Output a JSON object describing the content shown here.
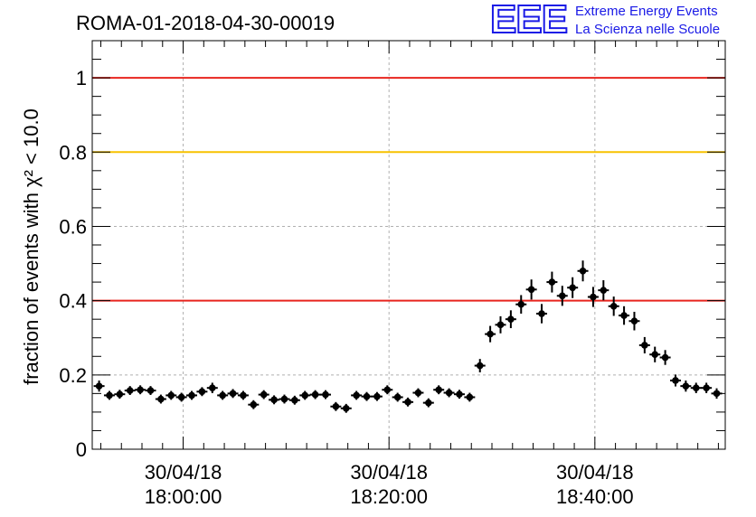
{
  "logo": {
    "letters": "EEE",
    "line1": "Extreme Energy Events",
    "line2": "La Scienza nelle Scuole",
    "color": "#1a1ae6"
  },
  "chart_data": {
    "type": "scatter",
    "title": "ROMA-01-2018-04-30-00019",
    "ylabel": "fraction of events with χ² < 10.0",
    "ylim": [
      0,
      1.1
    ],
    "yticks": [
      0,
      0.2,
      0.4,
      0.6,
      0.8,
      1
    ],
    "ytick_labels": [
      "0",
      "0.2",
      "0.4",
      "0.6",
      "0.8",
      "1"
    ],
    "xlim": [
      "2018-04-30 17:51:10",
      "2018-04-30 18:52:40"
    ],
    "xticks": [
      "2018-04-30 18:00:00",
      "2018-04-30 18:20:00",
      "2018-04-30 18:40:00"
    ],
    "xtick_labels": [
      [
        "30/04/18",
        "18:00:00"
      ],
      [
        "30/04/18",
        "18:20:00"
      ],
      [
        "30/04/18",
        "18:40:00"
      ]
    ],
    "grid": true,
    "reference_lines": [
      {
        "y": 1.0,
        "color": "#e8251e"
      },
      {
        "y": 0.8,
        "color": "#f7c200"
      },
      {
        "y": 0.4,
        "color": "#e8251e"
      }
    ],
    "series": [
      {
        "marker_color": "#000000",
        "x": [
          "2018-04-30 17:51:50",
          "2018-04-30 17:52:50",
          "2018-04-30 17:53:50",
          "2018-04-30 17:54:50",
          "2018-04-30 17:55:50",
          "2018-04-30 17:56:50",
          "2018-04-30 17:57:50",
          "2018-04-30 17:58:50",
          "2018-04-30 17:59:50",
          "2018-04-30 18:00:50",
          "2018-04-30 18:01:50",
          "2018-04-30 18:02:50",
          "2018-04-30 18:03:50",
          "2018-04-30 18:04:50",
          "2018-04-30 18:05:50",
          "2018-04-30 18:06:50",
          "2018-04-30 18:07:50",
          "2018-04-30 18:08:50",
          "2018-04-30 18:09:50",
          "2018-04-30 18:10:50",
          "2018-04-30 18:11:50",
          "2018-04-30 18:12:50",
          "2018-04-30 18:13:50",
          "2018-04-30 18:14:50",
          "2018-04-30 18:15:50",
          "2018-04-30 18:16:50",
          "2018-04-30 18:17:50",
          "2018-04-30 18:18:50",
          "2018-04-30 18:19:50",
          "2018-04-30 18:20:50",
          "2018-04-30 18:21:50",
          "2018-04-30 18:22:50",
          "2018-04-30 18:23:50",
          "2018-04-30 18:24:50",
          "2018-04-30 18:25:50",
          "2018-04-30 18:26:50",
          "2018-04-30 18:27:50",
          "2018-04-30 18:28:50",
          "2018-04-30 18:29:50",
          "2018-04-30 18:30:50",
          "2018-04-30 18:31:50",
          "2018-04-30 18:32:50",
          "2018-04-30 18:33:50",
          "2018-04-30 18:34:50",
          "2018-04-30 18:35:50",
          "2018-04-30 18:36:50",
          "2018-04-30 18:37:50",
          "2018-04-30 18:38:50",
          "2018-04-30 18:39:50",
          "2018-04-30 18:40:50",
          "2018-04-30 18:41:50",
          "2018-04-30 18:42:50",
          "2018-04-30 18:43:50",
          "2018-04-30 18:44:50",
          "2018-04-30 18:45:50",
          "2018-04-30 18:46:50",
          "2018-04-30 18:47:50",
          "2018-04-30 18:48:50",
          "2018-04-30 18:49:50",
          "2018-04-30 18:50:50",
          "2018-04-30 18:51:50"
        ],
        "y": [
          0.17,
          0.145,
          0.148,
          0.158,
          0.16,
          0.158,
          0.135,
          0.145,
          0.14,
          0.145,
          0.155,
          0.165,
          0.145,
          0.15,
          0.145,
          0.12,
          0.147,
          0.133,
          0.135,
          0.132,
          0.145,
          0.147,
          0.147,
          0.115,
          0.11,
          0.145,
          0.142,
          0.142,
          0.16,
          0.14,
          0.127,
          0.152,
          0.125,
          0.16,
          0.152,
          0.148,
          0.14,
          0.225,
          0.31,
          0.335,
          0.35,
          0.39,
          0.43,
          0.365,
          0.45,
          0.413,
          0.435,
          0.48,
          0.41,
          0.428,
          0.385,
          0.36,
          0.345,
          0.28,
          0.255,
          0.247,
          0.185,
          0.17,
          0.165,
          0.165,
          0.15
        ],
        "yerr": [
          0.015,
          0.012,
          0.012,
          0.012,
          0.012,
          0.012,
          0.012,
          0.012,
          0.012,
          0.012,
          0.012,
          0.014,
          0.012,
          0.012,
          0.012,
          0.012,
          0.012,
          0.012,
          0.012,
          0.012,
          0.012,
          0.012,
          0.012,
          0.012,
          0.012,
          0.012,
          0.012,
          0.012,
          0.012,
          0.012,
          0.012,
          0.012,
          0.012,
          0.012,
          0.012,
          0.012,
          0.012,
          0.018,
          0.022,
          0.023,
          0.024,
          0.025,
          0.027,
          0.026,
          0.028,
          0.027,
          0.028,
          0.028,
          0.027,
          0.027,
          0.026,
          0.025,
          0.025,
          0.022,
          0.021,
          0.02,
          0.016,
          0.015,
          0.014,
          0.014,
          0.014
        ]
      }
    ]
  }
}
